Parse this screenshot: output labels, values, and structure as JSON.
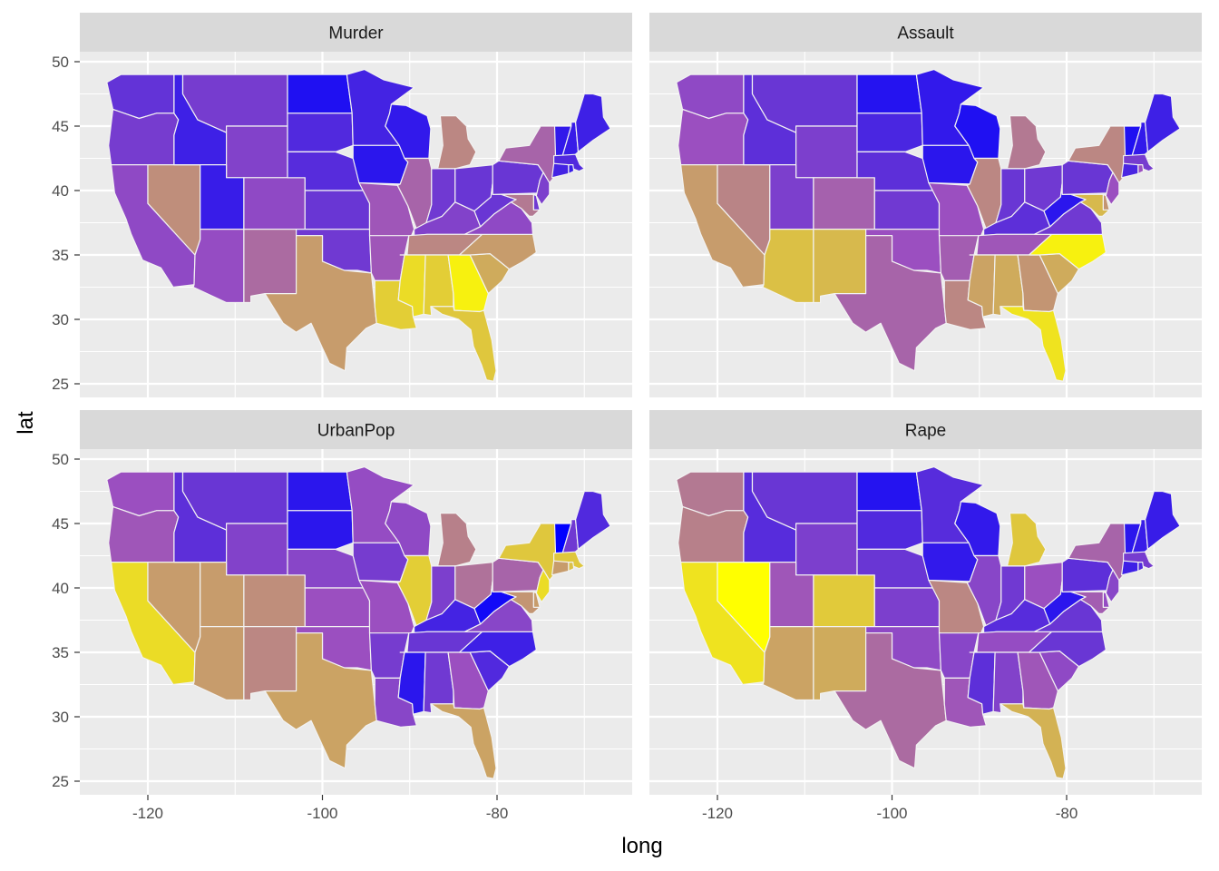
{
  "chart_data": {
    "type": "choropleth map (faceted)",
    "xlabel": "long",
    "ylabel": "lat",
    "xlim": [
      -127,
      -65
    ],
    "ylim": [
      24,
      51
    ],
    "x_ticks": [
      -120,
      -100,
      -80
    ],
    "x_tick_labels": [
      "-120",
      "-100",
      "-80"
    ],
    "y_ticks": [
      25,
      30,
      35,
      40,
      45,
      50
    ],
    "y_tick_labels": [
      "25",
      "30",
      "35",
      "40",
      "45",
      "50"
    ],
    "grid": true,
    "color_scale": {
      "low": "#0000ff",
      "mid": "#9b4fc0",
      "high": "#ffff00"
    },
    "facets": [
      {
        "name": "Murder"
      },
      {
        "name": "Assault"
      },
      {
        "name": "UrbanPop"
      },
      {
        "name": "Rape"
      }
    ],
    "states": [
      {
        "id": "WA",
        "cx": -120.5,
        "cy": 47.4,
        "values": {
          "Murder": 0.32,
          "Assault": 0.46,
          "UrbanPop": 0.5,
          "Rape": 0.62
        }
      },
      {
        "id": "OR",
        "cx": -120.5,
        "cy": 43.9,
        "values": {
          "Murder": 0.38,
          "Assault": 0.5,
          "UrbanPop": 0.52,
          "Rape": 0.64
        }
      },
      {
        "id": "CA",
        "cx": -119.5,
        "cy": 37.2,
        "values": {
          "Murder": 0.46,
          "Assault": 0.72,
          "UrbanPop": 0.9,
          "Rape": 0.92
        }
      },
      {
        "id": "NV",
        "cx": -116.6,
        "cy": 39.3,
        "values": {
          "Murder": 0.68,
          "Assault": 0.65,
          "UrbanPop": 0.72,
          "Rape": 1.0
        }
      },
      {
        "id": "ID",
        "cx": -114.6,
        "cy": 44.4,
        "values": {
          "Murder": 0.2,
          "Assault": 0.3,
          "UrbanPop": 0.3,
          "Rape": 0.28
        }
      },
      {
        "id": "MT",
        "cx": -109.6,
        "cy": 47.0,
        "values": {
          "Murder": 0.38,
          "Assault": 0.34,
          "UrbanPop": 0.34,
          "Rape": 0.34
        }
      },
      {
        "id": "WY",
        "cx": -107.5,
        "cy": 43.0,
        "values": {
          "Murder": 0.42,
          "Assault": 0.4,
          "UrbanPop": 0.42,
          "Rape": 0.4
        }
      },
      {
        "id": "UT",
        "cx": -111.7,
        "cy": 39.3,
        "values": {
          "Murder": 0.18,
          "Assault": 0.4,
          "UrbanPop": 0.72,
          "Rape": 0.52
        }
      },
      {
        "id": "CO",
        "cx": -105.5,
        "cy": 39.0,
        "values": {
          "Murder": 0.46,
          "Assault": 0.55,
          "UrbanPop": 0.68,
          "Rape": 0.85
        }
      },
      {
        "id": "AZ",
        "cx": -111.7,
        "cy": 34.3,
        "values": {
          "Murder": 0.48,
          "Assault": 0.82,
          "UrbanPop": 0.72,
          "Rape": 0.74
        }
      },
      {
        "id": "NM",
        "cx": -106.1,
        "cy": 34.4,
        "values": {
          "Murder": 0.58,
          "Assault": 0.8,
          "UrbanPop": 0.66,
          "Rape": 0.76
        }
      },
      {
        "id": "ND",
        "cx": -100.5,
        "cy": 47.5,
        "values": {
          "Murder": 0.1,
          "Assault": 0.12,
          "UrbanPop": 0.14,
          "Rape": 0.12
        }
      },
      {
        "id": "SD",
        "cx": -100.2,
        "cy": 44.4,
        "values": {
          "Murder": 0.26,
          "Assault": 0.24,
          "UrbanPop": 0.14,
          "Rape": 0.26
        }
      },
      {
        "id": "NE",
        "cx": -99.8,
        "cy": 41.5,
        "values": {
          "Murder": 0.28,
          "Assault": 0.3,
          "UrbanPop": 0.44,
          "Rape": 0.34
        }
      },
      {
        "id": "KS",
        "cx": -98.4,
        "cy": 38.5,
        "values": {
          "Murder": 0.34,
          "Assault": 0.36,
          "UrbanPop": 0.5,
          "Rape": 0.4
        }
      },
      {
        "id": "OK",
        "cx": -97.5,
        "cy": 35.5,
        "values": {
          "Murder": 0.36,
          "Assault": 0.5,
          "UrbanPop": 0.5,
          "Rape": 0.46
        }
      },
      {
        "id": "TX",
        "cx": -99.3,
        "cy": 31.3,
        "values": {
          "Murder": 0.72,
          "Assault": 0.56,
          "UrbanPop": 0.74,
          "Rape": 0.58
        }
      },
      {
        "id": "MN",
        "cx": -94.3,
        "cy": 46.3,
        "values": {
          "Murder": 0.22,
          "Assault": 0.16,
          "UrbanPop": 0.48,
          "Rape": 0.28
        }
      },
      {
        "id": "IA",
        "cx": -93.4,
        "cy": 42.0,
        "values": {
          "Murder": 0.14,
          "Assault": 0.14,
          "UrbanPop": 0.38,
          "Rape": 0.16
        }
      },
      {
        "id": "MO",
        "cx": -92.4,
        "cy": 38.4,
        "values": {
          "Murder": 0.52,
          "Assault": 0.5,
          "UrbanPop": 0.5,
          "Rape": 0.66
        }
      },
      {
        "id": "AR",
        "cx": -92.4,
        "cy": 34.9,
        "values": {
          "Murder": 0.52,
          "Assault": 0.54,
          "UrbanPop": 0.38,
          "Rape": 0.44
        }
      },
      {
        "id": "LA",
        "cx": -92.0,
        "cy": 31.0,
        "values": {
          "Murder": 0.86,
          "Assault": 0.66,
          "UrbanPop": 0.44,
          "Rape": 0.52
        }
      },
      {
        "id": "WI",
        "cx": -89.9,
        "cy": 44.6,
        "values": {
          "Murder": 0.16,
          "Assault": 0.1,
          "UrbanPop": 0.46,
          "Rape": 0.16
        }
      },
      {
        "id": "IL",
        "cx": -89.2,
        "cy": 40.0,
        "values": {
          "Murder": 0.56,
          "Assault": 0.66,
          "UrbanPop": 0.86,
          "Rape": 0.44
        }
      },
      {
        "id": "MI",
        "cx": -84.8,
        "cy": 43.6,
        "values": {
          "Murder": 0.66,
          "Assault": 0.62,
          "UrbanPop": 0.64,
          "Rape": 0.84
        }
      },
      {
        "id": "IN",
        "cx": -86.2,
        "cy": 39.9,
        "values": {
          "Murder": 0.36,
          "Assault": 0.34,
          "UrbanPop": 0.4,
          "Rape": 0.36
        }
      },
      {
        "id": "OH",
        "cx": -82.8,
        "cy": 40.3,
        "values": {
          "Murder": 0.34,
          "Assault": 0.36,
          "UrbanPop": 0.6,
          "Rape": 0.5
        }
      },
      {
        "id": "KY",
        "cx": -85.3,
        "cy": 37.5,
        "values": {
          "Murder": 0.42,
          "Assault": 0.3,
          "UrbanPop": 0.22,
          "Rape": 0.28
        }
      },
      {
        "id": "TN",
        "cx": -86.3,
        "cy": 35.8,
        "values": {
          "Murder": 0.66,
          "Assault": 0.52,
          "UrbanPop": 0.34,
          "Rape": 0.48
        }
      },
      {
        "id": "MS",
        "cx": -89.7,
        "cy": 32.7,
        "values": {
          "Murder": 0.9,
          "Assault": 0.74,
          "UrbanPop": 0.14,
          "Rape": 0.3
        }
      },
      {
        "id": "AL",
        "cx": -86.7,
        "cy": 32.7,
        "values": {
          "Murder": 0.86,
          "Assault": 0.76,
          "UrbanPop": 0.36,
          "Rape": 0.42
        }
      },
      {
        "id": "GA",
        "cx": -83.4,
        "cy": 32.6,
        "values": {
          "Murder": 0.96,
          "Assault": 0.7,
          "UrbanPop": 0.5,
          "Rape": 0.52
        }
      },
      {
        "id": "FL",
        "cx": -81.8,
        "cy": 28.7,
        "values": {
          "Murder": 0.84,
          "Assault": 0.92,
          "UrbanPop": 0.74,
          "Rape": 0.78
        }
      },
      {
        "id": "SC",
        "cx": -80.9,
        "cy": 33.9,
        "values": {
          "Murder": 0.76,
          "Assault": 0.76,
          "UrbanPop": 0.26,
          "Rape": 0.46
        }
      },
      {
        "id": "NC",
        "cx": -79.4,
        "cy": 35.6,
        "values": {
          "Murder": 0.72,
          "Assault": 0.96,
          "UrbanPop": 0.2,
          "Rape": 0.34
        }
      },
      {
        "id": "VA",
        "cx": -78.8,
        "cy": 37.6,
        "values": {
          "Murder": 0.46,
          "Assault": 0.36,
          "UrbanPop": 0.44,
          "Rape": 0.34
        }
      },
      {
        "id": "WV",
        "cx": -80.6,
        "cy": 38.7,
        "values": {
          "Murder": 0.34,
          "Assault": 0.14,
          "UrbanPop": 0.06,
          "Rape": 0.14
        }
      },
      {
        "id": "PA",
        "cx": -77.6,
        "cy": 40.9,
        "values": {
          "Murder": 0.34,
          "Assault": 0.34,
          "UrbanPop": 0.56,
          "Rape": 0.3
        }
      },
      {
        "id": "NY",
        "cx": -75.5,
        "cy": 42.9,
        "values": {
          "Murder": 0.56,
          "Assault": 0.66,
          "UrbanPop": 0.84,
          "Rape": 0.56
        }
      },
      {
        "id": "NJ",
        "cx": -74.5,
        "cy": 40.1,
        "values": {
          "Murder": 0.4,
          "Assault": 0.5,
          "UrbanPop": 0.9,
          "Rape": 0.44
        }
      },
      {
        "id": "MD",
        "cx": -76.7,
        "cy": 39.0,
        "values": {
          "Murder": 0.62,
          "Assault": 0.8,
          "UrbanPop": 0.7,
          "Rape": 0.54
        }
      },
      {
        "id": "VT",
        "cx": -72.7,
        "cy": 44.0,
        "values": {
          "Murder": 0.16,
          "Assault": 0.1,
          "UrbanPop": 0.0,
          "Rape": 0.14
        }
      },
      {
        "id": "NH",
        "cx": -71.6,
        "cy": 43.6,
        "values": {
          "Murder": 0.18,
          "Assault": 0.16,
          "UrbanPop": 0.36,
          "Rape": 0.18
        }
      },
      {
        "id": "ME",
        "cx": -69.2,
        "cy": 45.4,
        "values": {
          "Murder": 0.2,
          "Assault": 0.2,
          "UrbanPop": 0.26,
          "Rape": 0.18
        }
      },
      {
        "id": "MA",
        "cx": -71.8,
        "cy": 42.3,
        "values": {
          "Murder": 0.26,
          "Assault": 0.38,
          "UrbanPop": 0.84,
          "Rape": 0.38
        }
      },
      {
        "id": "CT",
        "cx": -72.7,
        "cy": 41.6,
        "values": {
          "Murder": 0.22,
          "Assault": 0.24,
          "UrbanPop": 0.72,
          "Rape": 0.2
        }
      },
      {
        "id": "RI",
        "cx": -71.5,
        "cy": 41.7,
        "values": {
          "Murder": 0.18,
          "Assault": 0.5,
          "UrbanPop": 0.82,
          "Rape": 0.26
        }
      },
      {
        "id": "DE",
        "cx": -75.5,
        "cy": 39.0,
        "values": {
          "Murder": 0.36,
          "Assault": 0.7,
          "UrbanPop": 0.72,
          "Rape": 0.48
        }
      }
    ]
  }
}
